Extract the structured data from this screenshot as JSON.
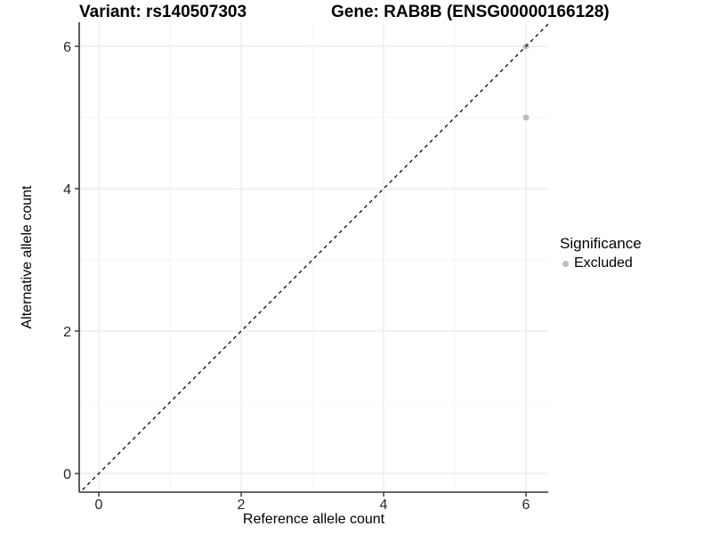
{
  "chart_data": {
    "type": "scatter",
    "variant_title": "Variant: rs140507303",
    "gene_title": "Gene: RAB8B (ENSG00000166128)",
    "xlabel": "Reference allele count",
    "ylabel": "Alternative allele count",
    "x_ticks": [
      0,
      2,
      4,
      6
    ],
    "y_ticks": [
      0,
      2,
      4,
      6
    ],
    "x_minor": [
      1,
      3,
      5
    ],
    "y_minor": [
      1,
      3,
      5
    ],
    "xlim": [
      -0.3,
      6.34
    ],
    "ylim": [
      -0.3,
      6.34
    ],
    "grid": "on",
    "points": [
      {
        "x": 6,
        "y": 5,
        "series": "Excluded"
      },
      {
        "x": 6,
        "y": 6,
        "series": "Excluded"
      }
    ],
    "identity_line": {
      "style": "dashed",
      "from": [
        -0.3,
        -0.3
      ],
      "to": [
        6.34,
        6.34
      ]
    },
    "legend": {
      "title": "Significance",
      "position": "right",
      "items": [
        {
          "label": "Excluded",
          "color": "#bdbdbd"
        }
      ]
    },
    "colors": {
      "point": "#bdbdbd",
      "grid_major": "#ebebeb",
      "grid_minor": "#f5f5f5",
      "axis": "#333333",
      "identity": "#000000",
      "tick_text": "#262626",
      "background": "#ffffff"
    }
  }
}
